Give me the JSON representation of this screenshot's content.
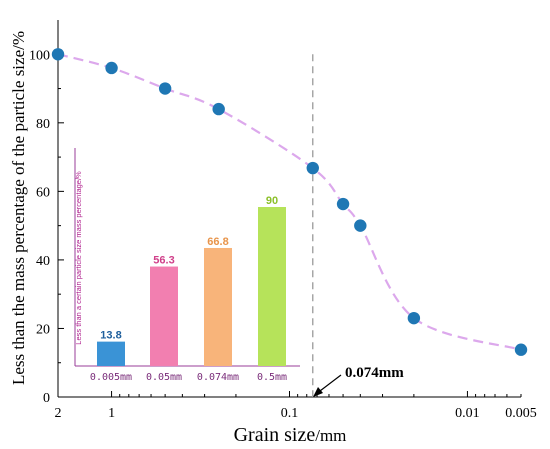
{
  "chart_data": [
    {
      "type": "scatter",
      "xlabel": "Grain size",
      "xunit": "/mm",
      "ylabel": "Less than the mass percentage of the particle size/%",
      "x_scale": "log-reversed",
      "xlim": [
        2,
        0.005
      ],
      "ylim": [
        0,
        110
      ],
      "x_ticks": [
        {
          "value": 2,
          "label": "2"
        },
        {
          "value": 1,
          "label": "1"
        },
        {
          "value": 0.1,
          "label": "0.1"
        },
        {
          "value": 0.01,
          "label": "0.01"
        },
        {
          "value": 0.005,
          "label": "0.005"
        }
      ],
      "y_ticks": [
        {
          "value": 0,
          "label": "0"
        },
        {
          "value": 20,
          "label": "20"
        },
        {
          "value": 40,
          "label": "40"
        },
        {
          "value": 60,
          "label": "60"
        },
        {
          "value": 80,
          "label": "80"
        },
        {
          "value": 100,
          "label": "100"
        }
      ],
      "points": [
        {
          "x": 2,
          "y": 100
        },
        {
          "x": 1,
          "y": 96
        },
        {
          "x": 0.5,
          "y": 90
        },
        {
          "x": 0.25,
          "y": 84
        },
        {
          "x": 0.074,
          "y": 66.8
        },
        {
          "x": 0.05,
          "y": 56.3
        },
        {
          "x": 0.04,
          "y": 50
        },
        {
          "x": 0.02,
          "y": 23
        },
        {
          "x": 0.005,
          "y": 13.8
        }
      ],
      "point_color": "#1f77b4",
      "curve_color": "#dca8ec",
      "reference_line": {
        "x": 0.074,
        "label": "0.074mm"
      },
      "grid": false
    },
    {
      "type": "bar",
      "ylabel": "Less than a certain particle size mass percentage/%",
      "categories": [
        "0.005mm",
        "0.05mm",
        "0.074mm",
        "0.5mm"
      ],
      "values": [
        13.8,
        56.3,
        66.8,
        90
      ],
      "value_labels": [
        "13.8",
        "56.3",
        "66.8",
        "90"
      ],
      "colors": [
        "#3a93d6",
        "#f27fb0",
        "#f8b47a",
        "#b6e35a"
      ],
      "label_colors": [
        "#1f5f9c",
        "#d0408a",
        "#e8944a",
        "#8cc02a"
      ],
      "ylim": [
        0,
        90
      ]
    }
  ]
}
